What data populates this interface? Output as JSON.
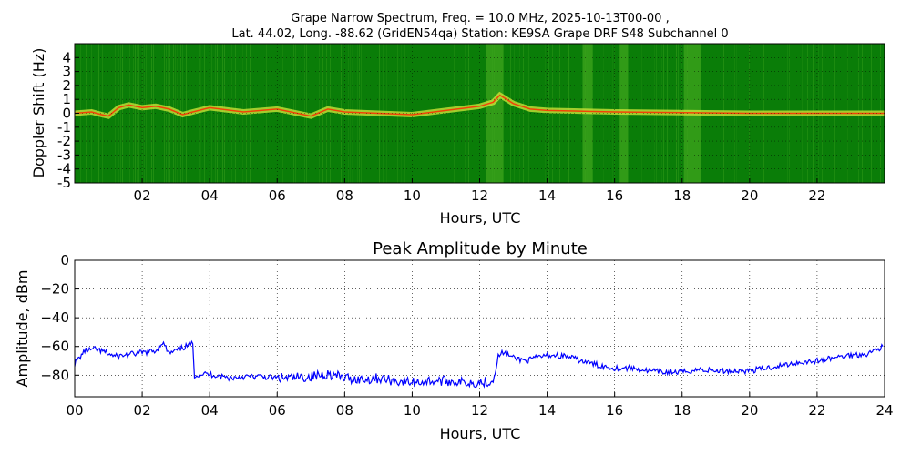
{
  "colors": {
    "spectrum_background": "#0a7d08",
    "spectrum_noise": "#3ba21c",
    "spectrum_trace": "#d6e83a",
    "spectrum_peak": "#ff2a00",
    "amplitude_line": "#0000ff",
    "grid": "#000000"
  },
  "header": {
    "line1": "Grape Narrow Spectrum, Freq. = 10.0 MHz, 2025-10-13T00-00 ,",
    "line2": "Lat.  44.02, Long. -88.62 (GridEN54qa) Station: KE9SA Grape DRF S48 Subchannel 0"
  },
  "chart_data": [
    {
      "type": "heatmap",
      "title": "",
      "xlabel": "Hours, UTC",
      "ylabel": "Doppler Shift (Hz)",
      "xlim": [
        0,
        24
      ],
      "ylim": [
        -5,
        5
      ],
      "xticks": [
        "02",
        "04",
        "06",
        "08",
        "10",
        "12",
        "14",
        "16",
        "18",
        "20",
        "22"
      ],
      "xtick_values": [
        2,
        4,
        6,
        8,
        10,
        12,
        14,
        16,
        18,
        20,
        22
      ],
      "yticks": [
        "4",
        "3",
        "2",
        "1",
        "0",
        "-1",
        "-2",
        "-3",
        "-4",
        "-5"
      ],
      "ytick_values": [
        4,
        3,
        2,
        1,
        0,
        -1,
        -2,
        -3,
        -4,
        -5
      ],
      "grid": true,
      "colormap": "green-yellow-red",
      "doppler_trace": {
        "hours": [
          0,
          0.5,
          0.8,
          1.0,
          1.3,
          1.6,
          2.0,
          2.4,
          2.8,
          3.2,
          3.5,
          4.0,
          5.0,
          6.0,
          7.0,
          7.5,
          8.0,
          9.0,
          10.0,
          11.0,
          12.0,
          12.4,
          12.6,
          13.0,
          13.5,
          14.0,
          16.0,
          18.0,
          20.0,
          22.0,
          24.0
        ],
        "hz": [
          0,
          0.1,
          -0.1,
          -0.2,
          0.4,
          0.6,
          0.4,
          0.5,
          0.3,
          -0.1,
          0.1,
          0.4,
          0.1,
          0.3,
          -0.2,
          0.3,
          0.1,
          0,
          -0.1,
          0.2,
          0.5,
          0.8,
          1.3,
          0.7,
          0.3,
          0.2,
          0.1,
          0.05,
          0,
          0,
          0
        ]
      },
      "bright_bands_hours": [
        [
          12.2,
          12.7
        ],
        [
          15.05,
          15.35
        ],
        [
          16.15,
          16.4
        ],
        [
          18.05,
          18.55
        ]
      ]
    },
    {
      "type": "line",
      "title": "Peak Amplitude by Minute",
      "xlabel": "Hours, UTC",
      "ylabel": "Amplitude, dBm",
      "xlim": [
        0,
        24
      ],
      "ylim": [
        -95,
        0
      ],
      "xticks": [
        "00",
        "02",
        "04",
        "06",
        "08",
        "10",
        "12",
        "14",
        "16",
        "18",
        "20",
        "22",
        "24"
      ],
      "xtick_values": [
        0,
        2,
        4,
        6,
        8,
        10,
        12,
        14,
        16,
        18,
        20,
        22,
        24
      ],
      "yticks": [
        "0",
        "−20",
        "−40",
        "−60",
        "−80"
      ],
      "ytick_values": [
        0,
        -20,
        -40,
        -60,
        -80
      ],
      "grid": true,
      "series": [
        {
          "x": [
            0,
            0.3,
            0.6,
            0.9,
            1.2,
            1.5,
            1.8,
            2.1,
            2.4,
            2.6,
            2.8,
            3.0,
            3.3,
            3.5,
            3.55,
            3.8,
            4.2,
            4.6,
            5.0,
            5.5,
            6.0,
            6.5,
            7.0,
            7.5,
            8.0,
            8.5,
            9.0,
            9.5,
            10.0,
            10.5,
            11.0,
            11.5,
            12.0,
            12.4,
            12.55,
            12.7,
            13.0,
            13.4,
            13.8,
            14.2,
            14.6,
            15.0,
            15.5,
            16.0,
            16.5,
            17.0,
            17.5,
            18.0,
            18.5,
            19.0,
            19.5,
            20.0,
            20.5,
            21.0,
            21.5,
            22.0,
            22.5,
            23.0,
            23.5,
            23.95
          ],
          "y": [
            -72,
            -63,
            -62,
            -64,
            -67,
            -66,
            -65,
            -64,
            -63,
            -57,
            -65,
            -63,
            -60,
            -58,
            -80,
            -79,
            -80,
            -82,
            -81,
            -81,
            -82,
            -82,
            -81,
            -79,
            -82,
            -83,
            -82,
            -84,
            -85,
            -84,
            -84,
            -85,
            -85,
            -84,
            -67,
            -64,
            -68,
            -70,
            -67,
            -66,
            -67,
            -70,
            -73,
            -75,
            -75,
            -77,
            -78,
            -78,
            -76,
            -77,
            -77,
            -77,
            -75,
            -73,
            -71,
            -70,
            -68,
            -66,
            -65,
            -60
          ]
        }
      ]
    }
  ]
}
